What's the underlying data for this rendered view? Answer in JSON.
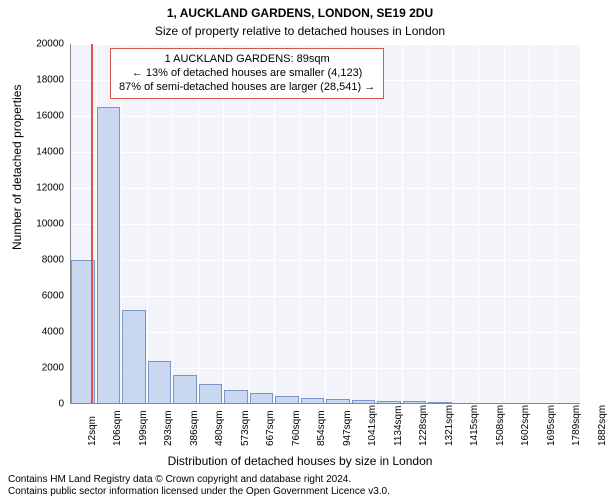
{
  "title": "1, AUCKLAND GARDENS, LONDON, SE19 2DU",
  "subtitle": "Size of property relative to detached houses in London",
  "ylabel": "Number of detached properties",
  "xlabel": "Distribution of detached houses by size in London",
  "footer_line1": "Contains HM Land Registry data © Crown copyright and database right 2024.",
  "footer_line2": "Contains public sector information licensed under the Open Government Licence v3.0.",
  "chart": {
    "type": "histogram",
    "plot_bg": "#f2f4f9",
    "grid_color": "#ffffff",
    "bar_color": "#c9d7f0",
    "bar_border": "#7b94c9",
    "marker_color": "#d9534f",
    "box_border": "#d9534f",
    "title_fontsize": 12,
    "label_fontsize": 12,
    "tick_fontsize": 10,
    "ylim_max": 20000,
    "ytick_step": 2000,
    "xticks": [
      "12sqm",
      "106sqm",
      "199sqm",
      "293sqm",
      "386sqm",
      "480sqm",
      "573sqm",
      "667sqm",
      "760sqm",
      "854sqm",
      "947sqm",
      "1041sqm",
      "1134sqm",
      "1228sqm",
      "1321sqm",
      "1415sqm",
      "1508sqm",
      "1602sqm",
      "1695sqm",
      "1789sqm",
      "1882sqm"
    ],
    "counts": [
      8000,
      16500,
      5200,
      2400,
      1600,
      1100,
      800,
      600,
      450,
      350,
      280,
      220,
      180,
      140,
      100,
      80,
      60,
      40,
      30,
      20
    ],
    "marker_pos_index": 0.82,
    "info_lines": [
      "1 AUCKLAND GARDENS: 89sqm",
      "← 13% of detached houses are smaller (4,123)",
      "87% of semi-detached houses are larger (28,541) →"
    ]
  }
}
